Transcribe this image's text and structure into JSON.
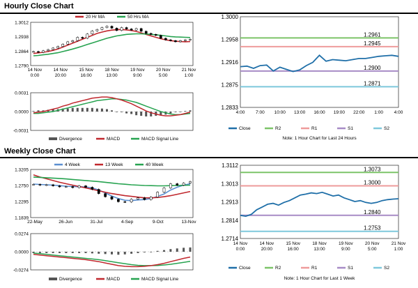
{
  "titles": {
    "hourly": "Hourly Close Chart",
    "weekly": "Weekly Close Chart"
  },
  "colors": {
    "close": "#1f6fa8",
    "r2": "#7cc468",
    "r1": "#ee9b9b",
    "s1": "#a78bc6",
    "s2": "#7ec8dc",
    "ma_short": "#c0272d",
    "ma_long": "#27a350",
    "ma_4w": "#5b8fd0",
    "divergence": "#555555"
  },
  "chart_data": [
    {
      "id": "hourly-price",
      "type": "candlestick",
      "legend": [
        "20 Hr MA",
        "50 Hrs MA"
      ],
      "y_ticks": [
        "1.3012",
        "1.2938",
        "1.2864",
        "1.2790"
      ],
      "ylim": [
        1.279,
        1.3012
      ],
      "x_ticks": [
        "14 Nov\n0:00",
        "14 Nov\n20:00",
        "15 Nov\n16:00",
        "18 Nov\n13:00",
        "19 Nov\n9:00",
        "20 Nov\n5:00",
        "21 Nov\n1:00"
      ],
      "close": [
        1.2862,
        1.2858,
        1.2866,
        1.2872,
        1.288,
        1.2888,
        1.29,
        1.2912,
        1.2918,
        1.2935,
        1.293,
        1.2952,
        1.2968,
        1.2975,
        1.2985,
        1.2992,
        1.2982,
        1.297,
        1.2985,
        1.2978,
        1.2972,
        1.298,
        1.2966,
        1.2955,
        1.295,
        1.2945,
        1.293,
        1.2922,
        1.2918,
        1.2912,
        1.2918,
        1.2922,
        1.2925
      ],
      "ma_20": [
        1.2852,
        1.2855,
        1.2858,
        1.2862,
        1.2868,
        1.2875,
        1.2885,
        1.2895,
        1.2905,
        1.2915,
        1.2925,
        1.2935,
        1.2945,
        1.2955,
        1.2962,
        1.2968,
        1.2972,
        1.2974,
        1.2975,
        1.2973,
        1.297,
        1.2965,
        1.2958,
        1.295,
        1.2942,
        1.2935,
        1.2928,
        1.2922,
        1.2918,
        1.2915,
        1.2913,
        1.2912,
        1.2913
      ],
      "ma_50": [
        1.284,
        1.2842,
        1.2845,
        1.2848,
        1.2852,
        1.2856,
        1.2862,
        1.2868,
        1.2875,
        1.2882,
        1.289,
        1.2898,
        1.2906,
        1.2914,
        1.2922,
        1.293,
        1.2936,
        1.2942,
        1.2946,
        1.295,
        1.2952,
        1.2953,
        1.2953,
        1.2952,
        1.295,
        1.2948,
        1.2945,
        1.2942,
        1.2939,
        1.2937,
        1.2936,
        1.2935,
        1.2934
      ]
    },
    {
      "id": "hourly-macd",
      "type": "line+bar",
      "legend": [
        "Divergence",
        "MACD",
        "MACD Signal Line"
      ],
      "y_ticks": [
        "0.0031",
        "0.0000",
        "-0.0031"
      ],
      "ylim": [
        -0.0031,
        0.0031
      ],
      "macd": [
        -0.0002,
        -0.0001,
        0.0,
        0.0002,
        0.0004,
        0.0006,
        0.0009,
        0.0011,
        0.0014,
        0.0016,
        0.0018,
        0.002,
        0.0022,
        0.0023,
        0.0024,
        0.0024,
        0.0023,
        0.0021,
        0.0019,
        0.0016,
        0.0013,
        0.0009,
        0.0005,
        0.0001,
        -0.0002,
        -0.0004,
        -0.0006,
        -0.0007,
        -0.0007,
        -0.0006,
        -0.0005,
        -0.0003,
        -0.0001
      ],
      "signal": [
        -0.0003,
        -0.0003,
        -0.0002,
        -0.0001,
        0.0,
        0.0002,
        0.0004,
        0.0006,
        0.0008,
        0.001,
        0.0012,
        0.0014,
        0.0016,
        0.0018,
        0.0019,
        0.002,
        0.0021,
        0.0021,
        0.002,
        0.0019,
        0.0017,
        0.0015,
        0.0012,
        0.0009,
        0.0006,
        0.0003,
        0.0,
        -0.0002,
        -0.0004,
        -0.0005,
        -0.0005,
        -0.0004,
        -0.0003
      ],
      "divergence": [
        0.0001,
        0.0002,
        0.0002,
        0.0003,
        0.0004,
        0.0004,
        0.0005,
        0.0005,
        0.0006,
        0.0006,
        0.0006,
        0.0006,
        0.0006,
        0.0005,
        0.0005,
        0.0004,
        0.0002,
        0.0,
        -0.0001,
        -0.0003,
        -0.0004,
        -0.0006,
        -0.0007,
        -0.0008,
        -0.0008,
        -0.0007,
        -0.0006,
        -0.0005,
        -0.0003,
        -0.0001,
        0.0,
        0.0001,
        0.0002
      ]
    },
    {
      "id": "hourly-levels",
      "type": "line",
      "y_ticks": [
        "1.3000",
        "1.2958",
        "1.2916",
        "1.2875",
        "1.2833"
      ],
      "ylim": [
        1.2833,
        1.3
      ],
      "x_ticks": [
        "4:00",
        "7:00",
        "10:00",
        "13:00",
        "16:00",
        "19:00",
        "22:00",
        "1:00",
        "4:00"
      ],
      "levels": [
        {
          "name": "R2",
          "value": 1.2961,
          "label": "1.2961"
        },
        {
          "name": "R1",
          "value": 1.2945,
          "label": "1.2945"
        },
        {
          "name": "S1",
          "value": 1.29,
          "label": "1.2900"
        },
        {
          "name": "S2",
          "value": 1.2871,
          "label": "1.2871"
        }
      ],
      "close": [
        1.2908,
        1.2909,
        1.2905,
        1.291,
        1.2911,
        1.29,
        1.2907,
        1.2903,
        1.2899,
        1.2902,
        1.291,
        1.2916,
        1.2929,
        1.2918,
        1.2921,
        1.292,
        1.2919,
        1.2921,
        1.2923,
        1.2923,
        1.2925,
        1.2927,
        1.2928,
        1.2929,
        1.2927
      ],
      "legend": [
        "Close",
        "R2",
        "R1",
        "S1",
        "S2"
      ],
      "note": "Note: 1 Hour Chart for Last 24 Hours"
    },
    {
      "id": "weekly-price",
      "type": "candlestick",
      "legend": [
        "4 Week",
        "13 Week",
        "40 Week"
      ],
      "y_ticks": [
        "1.3205",
        "1.2750",
        "1.2295",
        "1.1839"
      ],
      "ylim": [
        1.1839,
        1.3205
      ],
      "x_ticks": [
        "22-May",
        "26-Jun",
        "31-Jul",
        "4-Sep",
        "9-Oct",
        "13-Nov"
      ],
      "close": [
        1.278,
        1.276,
        1.277,
        1.274,
        1.271,
        1.272,
        1.269,
        1.274,
        1.27,
        1.264,
        1.252,
        1.243,
        1.236,
        1.229,
        1.228,
        1.236,
        1.24,
        1.235,
        1.242,
        1.256,
        1.268,
        1.28,
        1.276,
        1.282,
        1.286
      ],
      "ma_4w": [
        1.279,
        1.278,
        1.277,
        1.276,
        1.2745,
        1.273,
        1.272,
        1.2715,
        1.271,
        1.268,
        1.262,
        1.254,
        1.245,
        1.238,
        1.233,
        1.232,
        1.234,
        1.235,
        1.238,
        1.244,
        1.251,
        1.262,
        1.27,
        1.276,
        1.28
      ],
      "ma_13w": [
        1.305,
        1.299,
        1.294,
        1.289,
        1.284,
        1.28,
        1.276,
        1.272,
        1.268,
        1.264,
        1.26,
        1.256,
        1.252,
        1.249,
        1.246,
        1.244,
        1.242,
        1.24,
        1.24,
        1.241,
        1.243,
        1.246,
        1.25,
        1.254,
        1.258
      ],
      "ma_40w": [
        1.299,
        1.298,
        1.297,
        1.296,
        1.295,
        1.2935,
        1.292,
        1.2905,
        1.289,
        1.2875,
        1.286,
        1.284,
        1.282,
        1.28,
        1.2785,
        1.277,
        1.276,
        1.275,
        1.2745,
        1.274,
        1.274,
        1.2745,
        1.275,
        1.2755,
        1.276
      ]
    },
    {
      "id": "weekly-macd",
      "type": "line+bar",
      "legend": [
        "Divergence",
        "MACD",
        "MACD Signal Line"
      ],
      "y_ticks": [
        "0.0274",
        "0.0000",
        "-0.0274"
      ],
      "ylim": [
        -0.0274,
        0.0274
      ],
      "macd": [
        -0.004,
        -0.005,
        -0.006,
        -0.007,
        -0.008,
        -0.009,
        -0.01,
        -0.011,
        -0.012,
        -0.0135,
        -0.015,
        -0.017,
        -0.019,
        -0.021,
        -0.022,
        -0.0225,
        -0.0225,
        -0.022,
        -0.021,
        -0.0195,
        -0.0175,
        -0.015,
        -0.0125,
        -0.01,
        -0.008
      ],
      "signal": [
        -0.002,
        -0.003,
        -0.004,
        -0.005,
        -0.006,
        -0.007,
        -0.008,
        -0.009,
        -0.01,
        -0.011,
        -0.012,
        -0.0135,
        -0.015,
        -0.0165,
        -0.018,
        -0.0195,
        -0.0205,
        -0.021,
        -0.021,
        -0.0208,
        -0.02,
        -0.019,
        -0.0175,
        -0.016,
        -0.0145
      ],
      "divergence": [
        -0.002,
        -0.002,
        -0.002,
        -0.002,
        -0.002,
        -0.002,
        -0.002,
        -0.002,
        -0.002,
        -0.0025,
        -0.003,
        -0.0035,
        -0.004,
        -0.0045,
        -0.004,
        -0.003,
        -0.002,
        -0.001,
        0.0,
        0.0013,
        0.0025,
        0.004,
        0.005,
        0.006,
        0.0065
      ]
    },
    {
      "id": "weekly-levels",
      "type": "line",
      "y_ticks": [
        "1.3112",
        "1.3013",
        "1.2913",
        "1.2814",
        "1.2714"
      ],
      "ylim": [
        1.2714,
        1.3112
      ],
      "x_ticks": [
        "14 Nov\n0:00",
        "14 Nov\n20:00",
        "15 Nov\n16:00",
        "18 Nov\n13:00",
        "19 Nov\n9:00",
        "20 Nov\n5:00",
        "21 Nov\n1:00"
      ],
      "levels": [
        {
          "name": "R2",
          "value": 1.3073,
          "label": "1.3073"
        },
        {
          "name": "R1",
          "value": 1.3,
          "label": "1.3000"
        },
        {
          "name": "S1",
          "value": 1.284,
          "label": "1.2840"
        },
        {
          "name": "S2",
          "value": 1.2753,
          "label": "1.2753"
        }
      ],
      "close": [
        1.284,
        1.2835,
        1.2845,
        1.287,
        1.2885,
        1.29,
        1.2905,
        1.2895,
        1.291,
        1.292,
        1.2935,
        1.295,
        1.2955,
        1.2962,
        1.2958,
        1.2965,
        1.2955,
        1.2945,
        1.295,
        1.2935,
        1.2925,
        1.2915,
        1.292,
        1.291,
        1.2905,
        1.291,
        1.292,
        1.2925,
        1.2928,
        1.293
      ],
      "legend": [
        "Close",
        "R2",
        "R1",
        "S1",
        "S2"
      ],
      "note": "Note: 1 Hour Chart for Last 1 Week"
    }
  ]
}
